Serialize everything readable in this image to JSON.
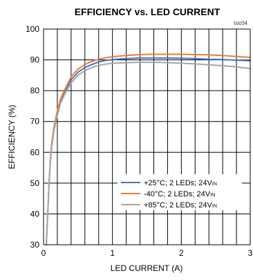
{
  "chart_data": {
    "type": "line",
    "title": "EFFICIENCY vs. LED CURRENT",
    "figure_code": "toc04",
    "xlabel": "LED CURRENT (A)",
    "ylabel": "EFFICIENCY (%)",
    "xlim": [
      0,
      3
    ],
    "ylim": [
      30,
      100
    ],
    "xticks": [
      "0",
      "1",
      "2",
      "3"
    ],
    "yticks": [
      "30",
      "40",
      "50",
      "60",
      "70",
      "80",
      "90",
      "100"
    ],
    "grid": true,
    "legend_position": "bottom-right",
    "series": [
      {
        "name": "+25°C; 2 LEDs; 24VIN",
        "legend": {
          "main": "+25°C; 2 LEDs; 24V",
          "sub": "IN"
        },
        "color": "#4472C4",
        "x": [
          0.04,
          0.06,
          0.08,
          0.1,
          0.12,
          0.15,
          0.2,
          0.25,
          0.3,
          0.4,
          0.5,
          0.6,
          0.7,
          0.8,
          0.9,
          1.0,
          1.2,
          1.4,
          1.6,
          1.8,
          2.0,
          2.2,
          2.4,
          2.6,
          2.8,
          3.0
        ],
        "y": [
          30,
          40,
          50,
          58,
          63,
          68,
          73,
          77,
          79.5,
          83.5,
          86,
          87.5,
          88.5,
          89.3,
          89.8,
          90.1,
          90.4,
          90.6,
          90.6,
          90.6,
          90.5,
          90.4,
          90.2,
          90.1,
          89.9,
          89.7
        ]
      },
      {
        "name": "-40°C; 2 LEDs; 24VIN",
        "legend": {
          "main": "-40°C;  2 LEDs; 24V",
          "sub": "IN"
        },
        "color": "#ED7D31",
        "x": [
          0.04,
          0.06,
          0.08,
          0.1,
          0.12,
          0.15,
          0.2,
          0.25,
          0.3,
          0.4,
          0.5,
          0.6,
          0.7,
          0.8,
          0.9,
          1.0,
          1.2,
          1.4,
          1.6,
          1.8,
          2.0,
          2.2,
          2.4,
          2.6,
          2.8,
          3.0
        ],
        "y": [
          30,
          40,
          50,
          58,
          63,
          68,
          73.5,
          77.5,
          80,
          84.5,
          87,
          88.5,
          89.5,
          90.2,
          90.7,
          91.0,
          91.4,
          91.7,
          91.8,
          91.8,
          91.8,
          91.7,
          91.6,
          91.4,
          91.1,
          90.8
        ]
      },
      {
        "name": "+85°C; 2 LEDs; 24VIN",
        "legend": {
          "main": "+85°C; 2 LEDs; 24V",
          "sub": "IN"
        },
        "color": "#A5A5A5",
        "x": [
          0.04,
          0.06,
          0.08,
          0.1,
          0.12,
          0.15,
          0.2,
          0.25,
          0.3,
          0.4,
          0.5,
          0.6,
          0.7,
          0.8,
          0.9,
          1.0,
          1.2,
          1.4,
          1.6,
          1.8,
          2.0,
          2.2,
          2.4,
          2.6,
          2.8,
          3.0
        ],
        "y": [
          30,
          40,
          50,
          57,
          62,
          67,
          72,
          76,
          78.5,
          82.5,
          85,
          86.5,
          87.5,
          88.2,
          88.6,
          88.9,
          89.1,
          89.2,
          89.2,
          89.1,
          88.9,
          88.7,
          88.4,
          88.1,
          87.7,
          87.2
        ]
      }
    ]
  }
}
